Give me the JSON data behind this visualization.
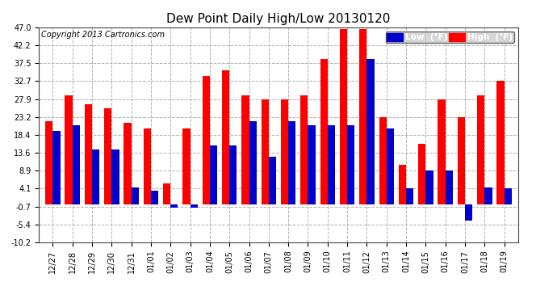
{
  "title": "Dew Point Daily High/Low 20130120",
  "copyright": "Copyright 2013 Cartronics.com",
  "legend_low": "Low  (°F)",
  "legend_high": "High  (°F)",
  "categories": [
    "12/27",
    "12/28",
    "12/29",
    "12/30",
    "12/31",
    "01/01",
    "01/02",
    "01/03",
    "01/04",
    "01/05",
    "01/06",
    "01/07",
    "01/08",
    "01/09",
    "01/10",
    "01/11",
    "01/12",
    "01/13",
    "01/14",
    "01/15",
    "01/16",
    "01/17",
    "01/18",
    "01/19"
  ],
  "high_values": [
    22.0,
    29.0,
    26.5,
    25.5,
    21.5,
    20.0,
    5.5,
    20.0,
    34.0,
    35.5,
    29.0,
    27.9,
    27.9,
    29.0,
    38.5,
    46.5,
    46.5,
    23.2,
    10.5,
    16.0,
    27.9,
    23.2,
    29.0,
    32.7
  ],
  "low_values": [
    19.5,
    21.0,
    14.5,
    14.5,
    4.5,
    3.5,
    -1.0,
    -1.0,
    15.5,
    15.5,
    22.0,
    12.5,
    22.0,
    21.0,
    21.0,
    21.0,
    38.5,
    20.0,
    4.1,
    8.9,
    8.9,
    -4.5,
    4.5,
    4.1
  ],
  "ylim": [
    -10.2,
    47.0
  ],
  "yticks": [
    -10.2,
    -5.4,
    -0.7,
    4.1,
    8.9,
    13.6,
    18.4,
    23.2,
    27.9,
    32.7,
    37.5,
    42.2,
    47.0
  ],
  "bar_width": 0.38,
  "high_color": "#ff0000",
  "low_color": "#0000cc",
  "bg_color": "#ffffff",
  "grid_color": "#b0b0b0",
  "title_fontsize": 11,
  "tick_fontsize": 7,
  "copyright_fontsize": 7
}
